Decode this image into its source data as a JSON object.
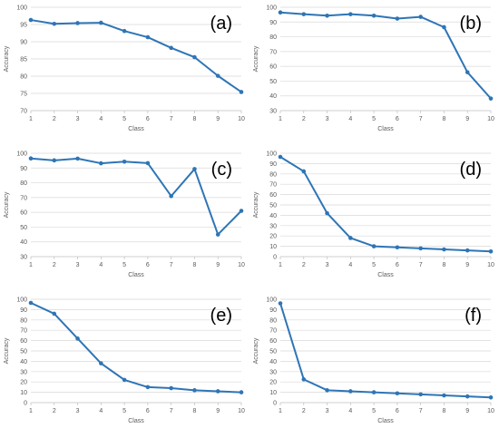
{
  "theme": {
    "line_color": "#2E75B6",
    "grid_color": "#D9D9D9",
    "axis_color": "#BFBFBF",
    "text_color": "#595959"
  },
  "chart_data": [
    {
      "type": "line",
      "panel_label": "(a)",
      "xlabel": "Class",
      "ylabel": "Accuracy",
      "x": [
        1,
        2,
        3,
        4,
        5,
        6,
        7,
        8,
        9,
        10
      ],
      "ylim": [
        70,
        100
      ],
      "ytick_step": 5,
      "series": [
        {
          "values": [
            96.3,
            95.2,
            95.4,
            95.5,
            93.1,
            91.3,
            88.2,
            85.5,
            80.1,
            75.4
          ]
        }
      ],
      "grid": true,
      "legend": "none"
    },
    {
      "type": "line",
      "panel_label": "(b)",
      "xlabel": "Class",
      "ylabel": "Accuracy",
      "x": [
        1,
        2,
        3,
        4,
        5,
        6,
        7,
        8,
        9,
        10
      ],
      "ylim": [
        30,
        100
      ],
      "ytick_step": 10,
      "series": [
        {
          "values": [
            96.5,
            95.3,
            94.3,
            95.3,
            94.3,
            92.3,
            93.5,
            86.5,
            56.0,
            38.2
          ]
        }
      ],
      "grid": true,
      "legend": "none"
    },
    {
      "type": "line",
      "panel_label": "(c)",
      "xlabel": "Class",
      "ylabel": "Accuracy",
      "x": [
        1,
        2,
        3,
        4,
        5,
        6,
        7,
        8,
        9,
        10
      ],
      "ylim": [
        30,
        100
      ],
      "ytick_step": 10,
      "series": [
        {
          "values": [
            96.5,
            95.2,
            96.4,
            93.2,
            94.3,
            93.3,
            71.0,
            89.3,
            45.0,
            61.0
          ]
        }
      ],
      "grid": true,
      "legend": "none"
    },
    {
      "type": "line",
      "panel_label": "(d)",
      "xlabel": "Class",
      "ylabel": "Accuracy",
      "x": [
        1,
        2,
        3,
        4,
        5,
        6,
        7,
        8,
        9,
        10
      ],
      "ylim": [
        0,
        100
      ],
      "ytick_step": 10,
      "series": [
        {
          "values": [
            96.5,
            82.5,
            42.0,
            18.0,
            10.0,
            9.0,
            8.0,
            7.0,
            6.0,
            5.0
          ]
        }
      ],
      "grid": true,
      "legend": "none"
    },
    {
      "type": "line",
      "panel_label": "(e)",
      "xlabel": "Class",
      "ylabel": "Accuracy",
      "x": [
        1,
        2,
        3,
        4,
        5,
        6,
        7,
        8,
        9,
        10
      ],
      "ylim": [
        0,
        100
      ],
      "ytick_step": 10,
      "series": [
        {
          "values": [
            96.5,
            86.0,
            62.0,
            38.0,
            22.0,
            15.0,
            14.0,
            12.0,
            11.0,
            10.0
          ]
        }
      ],
      "grid": true,
      "legend": "none"
    },
    {
      "type": "line",
      "panel_label": "(f)",
      "xlabel": "Class",
      "ylabel": "Accuracy",
      "x": [
        1,
        2,
        3,
        4,
        5,
        6,
        7,
        8,
        9,
        10
      ],
      "ylim": [
        0,
        100
      ],
      "ytick_step": 10,
      "series": [
        {
          "values": [
            96.0,
            22.5,
            12.0,
            11.0,
            10.0,
            9.0,
            8.0,
            7.0,
            6.0,
            5.0
          ]
        }
      ],
      "grid": true,
      "legend": "none"
    }
  ]
}
